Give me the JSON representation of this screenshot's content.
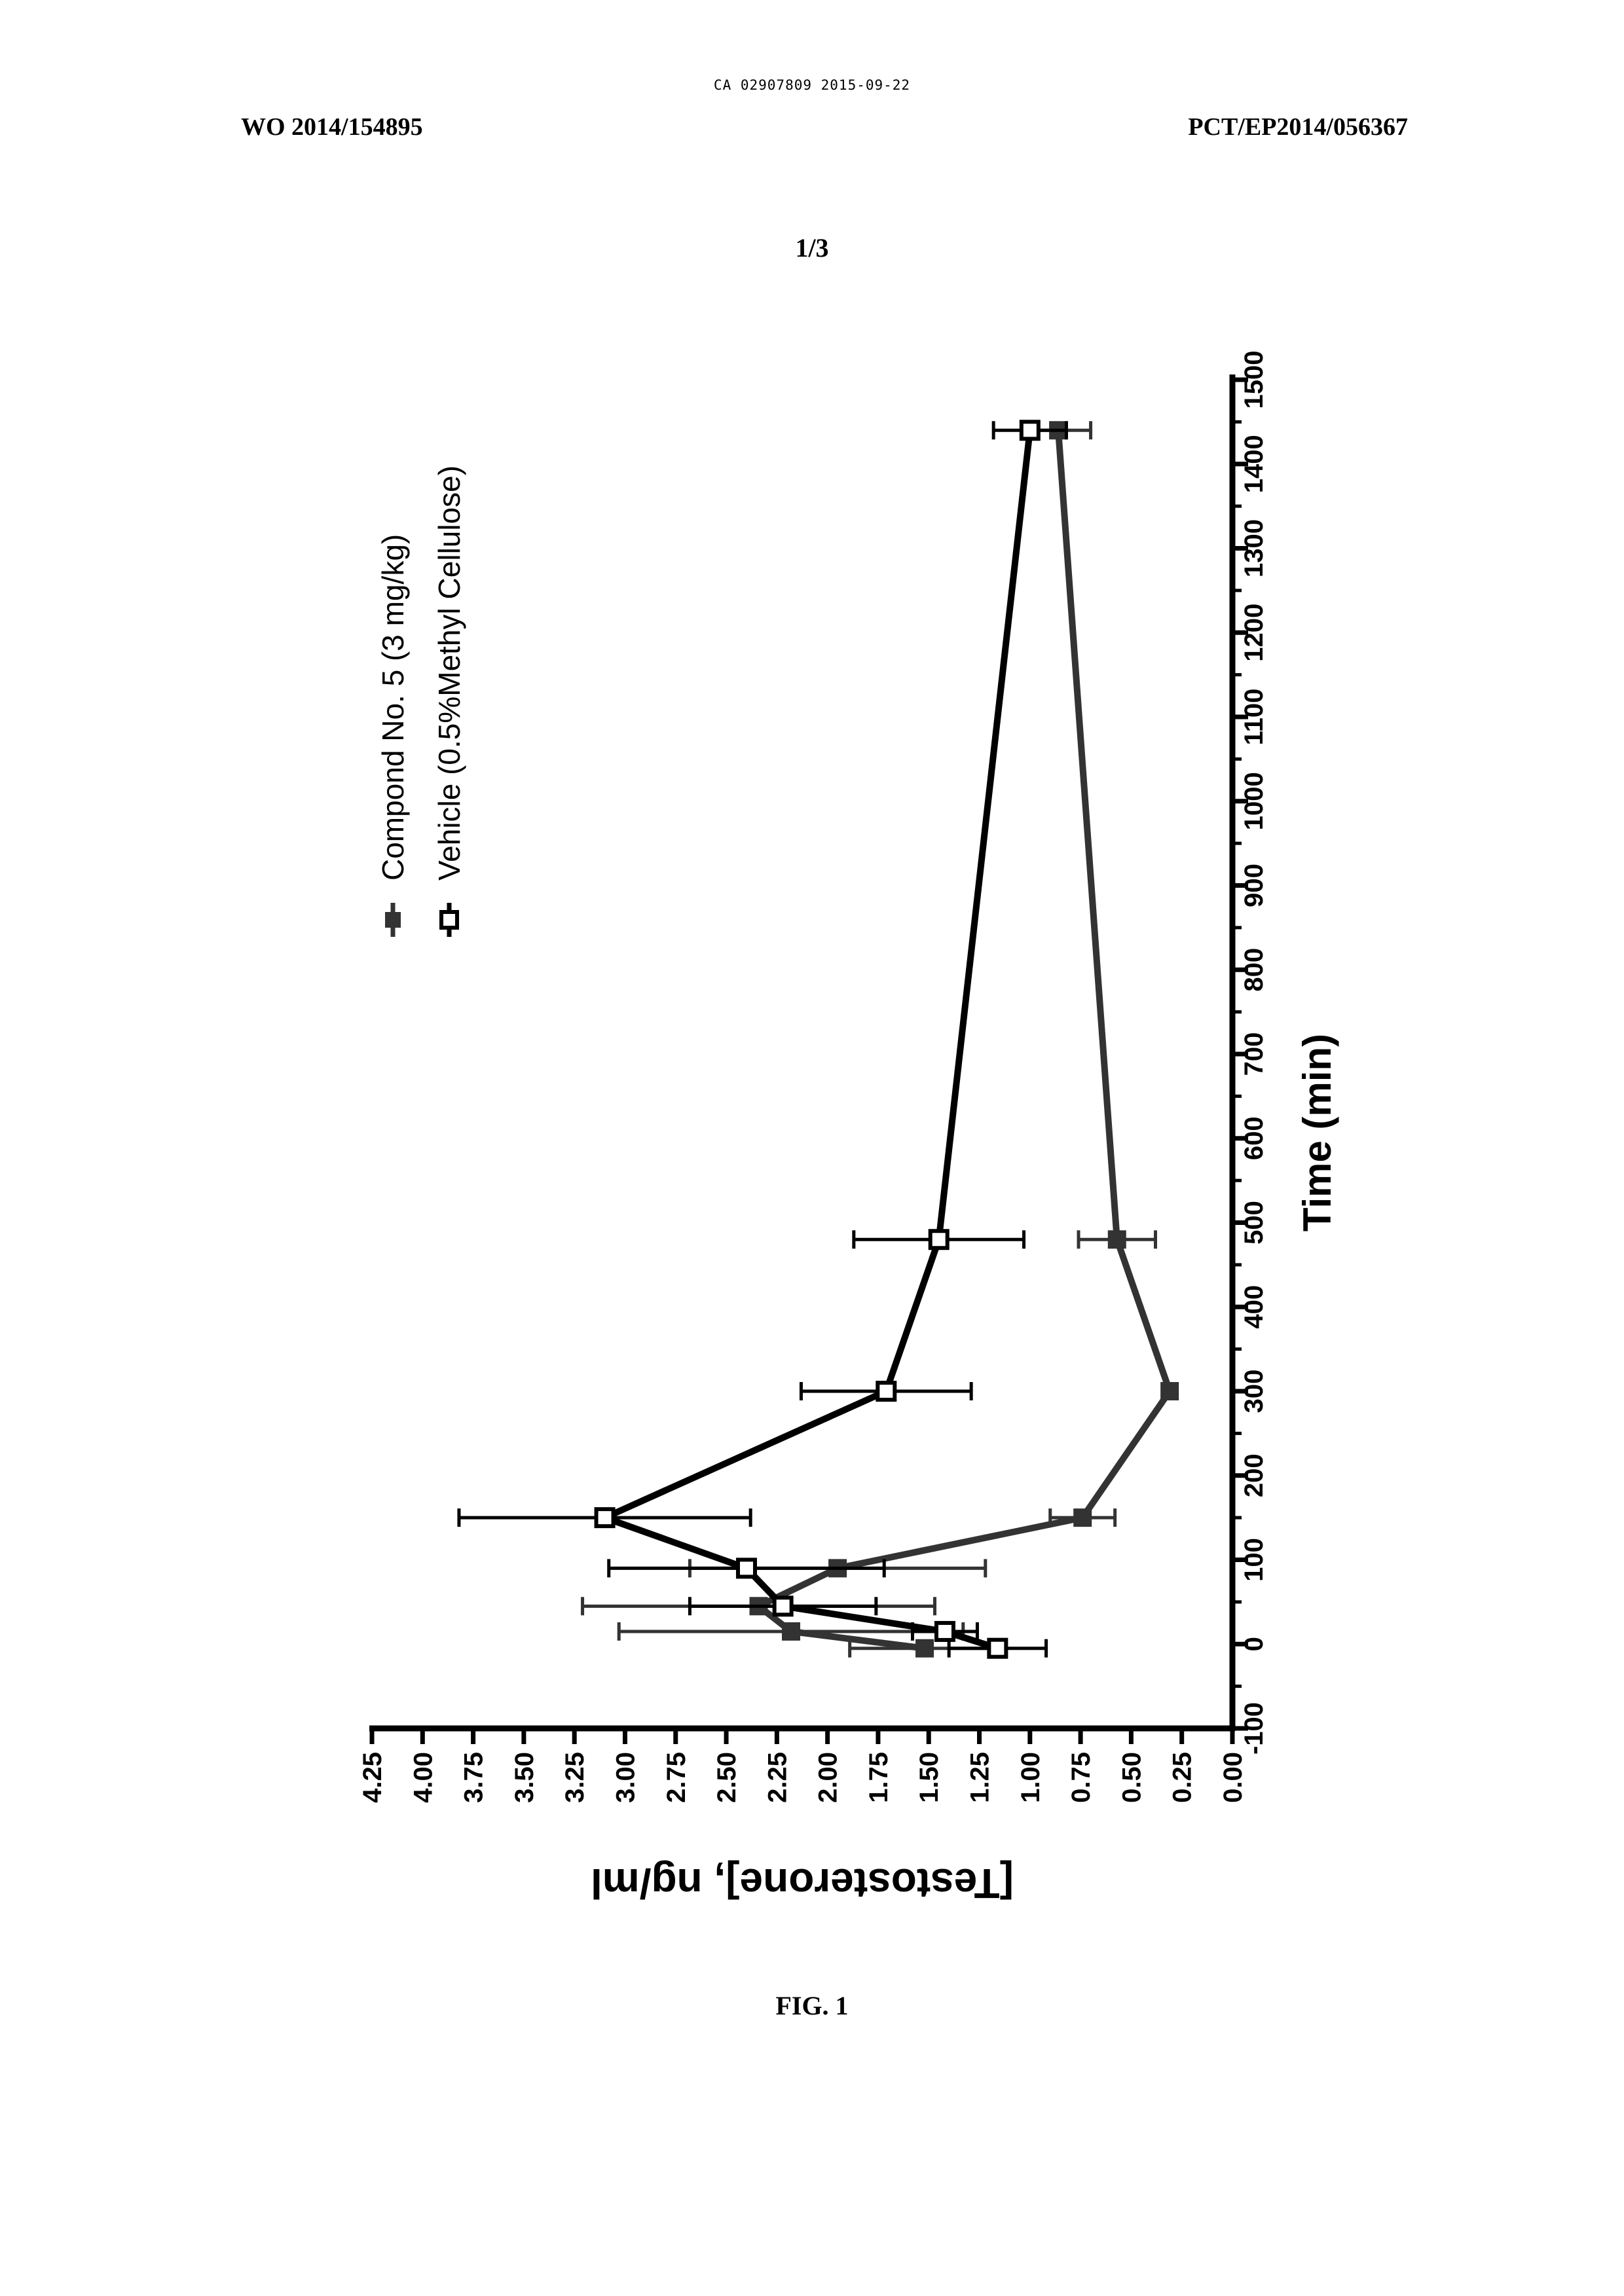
{
  "document": {
    "stamp": "CA 02907809 2015-09-22",
    "left_header": "WO 2014/154895",
    "right_header": "PCT/EP2014/056367",
    "page_number": "1/3",
    "figure_label": "FIG. 1"
  },
  "chart_data": {
    "type": "line",
    "orientation": "rotated-90-clockwise",
    "xlabel": "Time (min)",
    "ylabel": "[Testosterone], ng/ml",
    "xlim": [
      -100,
      1500
    ],
    "ylim": [
      0,
      4.25
    ],
    "xticks": [
      "-100",
      "0",
      "100",
      "200",
      "300",
      "400",
      "500",
      "600",
      "700",
      "800",
      "900",
      "1000",
      "1100",
      "1200",
      "1300",
      "1400",
      "1500"
    ],
    "yticks": [
      "0.00",
      "0.25",
      "0.50",
      "0.75",
      "1.00",
      "1.25",
      "1.50",
      "1.75",
      "2.00",
      "2.25",
      "2.50",
      "2.75",
      "3.00",
      "3.25",
      "3.50",
      "3.75",
      "4.00",
      "4.25"
    ],
    "legend_position": "top-left",
    "series": [
      {
        "name": "Compond No. 5 (3 mg/kg)",
        "marker": "filled-square",
        "color": "#333333",
        "points": [
          {
            "x": -5,
            "y": 1.52,
            "err": 0.37
          },
          {
            "x": 15,
            "y": 2.18,
            "err": 0.85
          },
          {
            "x": 45,
            "y": 2.34,
            "err": 0.87
          },
          {
            "x": 90,
            "y": 1.95,
            "err": 0.73
          },
          {
            "x": 150,
            "y": 0.74,
            "err": 0.16
          },
          {
            "x": 300,
            "y": 0.31,
            "err": 0.0
          },
          {
            "x": 480,
            "y": 0.57,
            "err": 0.19
          },
          {
            "x": 1440,
            "y": 0.86,
            "err": 0.16
          }
        ]
      },
      {
        "name": "Vehicle (0.5%Methyl Cellulose)",
        "marker": "open-square",
        "color": "#000000",
        "points": [
          {
            "x": -5,
            "y": 1.16,
            "err": 0.24
          },
          {
            "x": 15,
            "y": 1.42,
            "err": 0.16
          },
          {
            "x": 45,
            "y": 2.22,
            "err": 0.46
          },
          {
            "x": 90,
            "y": 2.4,
            "err": 0.68
          },
          {
            "x": 150,
            "y": 3.1,
            "err": 0.72
          },
          {
            "x": 300,
            "y": 1.71,
            "err": 0.42
          },
          {
            "x": 480,
            "y": 1.45,
            "err": 0.42
          },
          {
            "x": 1440,
            "y": 1.0,
            "err": 0.18
          }
        ]
      }
    ]
  }
}
